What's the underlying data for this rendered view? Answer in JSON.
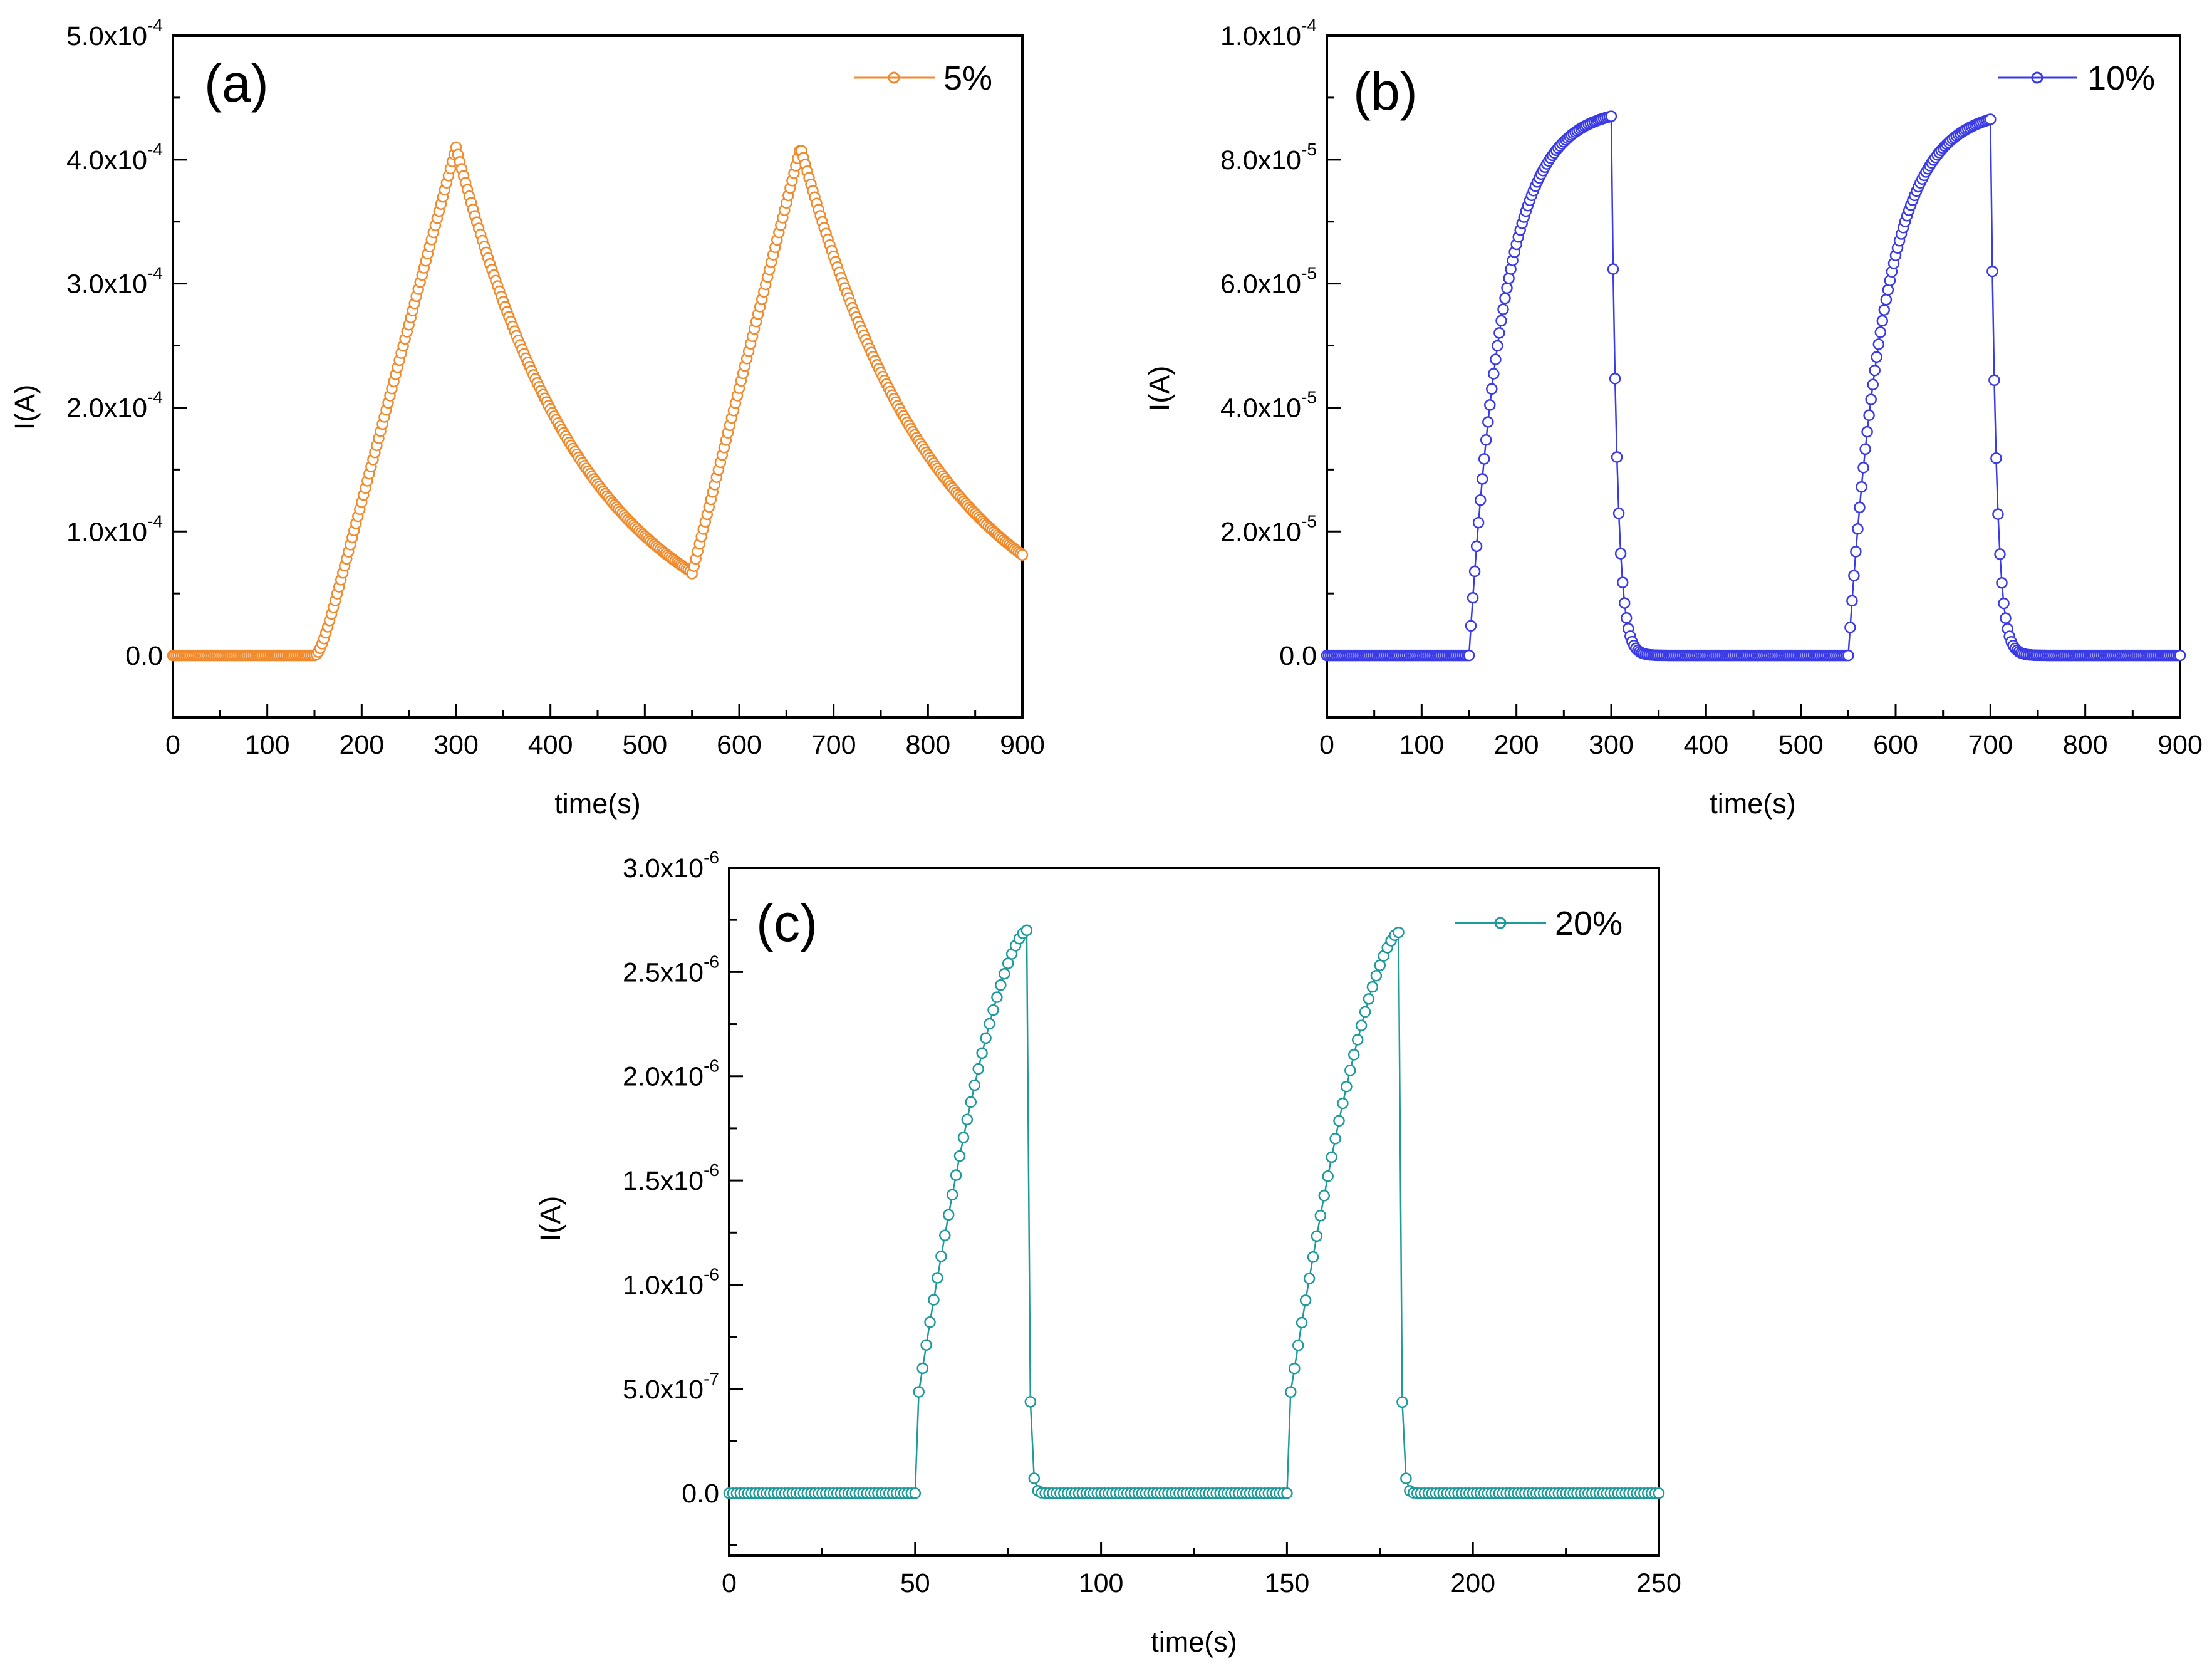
{
  "chart_data": [
    {
      "type": "scatter",
      "panel_label": "(a)",
      "xlabel": "time(s)",
      "ylabel": "I(A)",
      "xlim": [
        0,
        900
      ],
      "ylim": [
        -5e-05,
        0.0005
      ],
      "xticks": [
        0,
        100,
        200,
        300,
        400,
        500,
        600,
        700,
        800,
        900
      ],
      "xtick_labels": [
        "0",
        "100",
        "200",
        "300",
        "400",
        "500",
        "600",
        "700",
        "800",
        "900"
      ],
      "yticks": [
        {
          "value": 0,
          "mantissa": "0.0",
          "exp": ""
        },
        {
          "value": 0.0001,
          "mantissa": "1.0x10",
          "exp": "-4"
        },
        {
          "value": 0.0002,
          "mantissa": "2.0x10",
          "exp": "-4"
        },
        {
          "value": 0.0003,
          "mantissa": "3.0x10",
          "exp": "-4"
        },
        {
          "value": 0.0004,
          "mantissa": "4.0x10",
          "exp": "-4"
        },
        {
          "value": 0.0005,
          "mantissa": "5.0x10",
          "exp": "-4"
        }
      ],
      "legend_position": "top-right",
      "color": "#F08A2C",
      "marker": "open-circle",
      "series": [
        {
          "name": "5%",
          "sample_step": 2,
          "segments": [
            {
              "t0": 0,
              "t1": 150,
              "kind": "const",
              "a": 0
            },
            {
              "t0": 150,
              "t1": 300,
              "kind": "sigrise",
              "a": 0,
              "b": 0.00041,
              "tau": 0,
              "k": 22
            },
            {
              "t0": 300,
              "t1": 550,
              "kind": "decay",
              "a": 0.00041,
              "b": 0,
              "tau": 138
            },
            {
              "t0": 550,
              "t1": 665,
              "kind": "linear",
              "a": 6.6e-05,
              "b": 0.00041
            },
            {
              "t0": 665,
              "t1": 900,
              "kind": "decay",
              "a": 0.00041,
              "b": 0,
              "tau": 145
            }
          ]
        }
      ]
    },
    {
      "type": "scatter",
      "panel_label": "(b)",
      "xlabel": "time(s)",
      "ylabel": "I(A)",
      "xlim": [
        0,
        900
      ],
      "ylim": [
        -1e-05,
        0.0001
      ],
      "xticks": [
        0,
        100,
        200,
        300,
        400,
        500,
        600,
        700,
        800,
        900
      ],
      "xtick_labels": [
        "0",
        "100",
        "200",
        "300",
        "400",
        "500",
        "600",
        "700",
        "800",
        "900"
      ],
      "yticks": [
        {
          "value": 0,
          "mantissa": "0.0",
          "exp": ""
        },
        {
          "value": 2e-05,
          "mantissa": "2.0x10",
          "exp": "-5"
        },
        {
          "value": 4e-05,
          "mantissa": "4.0x10",
          "exp": "-5"
        },
        {
          "value": 6e-05,
          "mantissa": "6.0x10",
          "exp": "-5"
        },
        {
          "value": 8e-05,
          "mantissa": "8.0x10",
          "exp": "-5"
        },
        {
          "value": 0.0001,
          "mantissa": "1.0x10",
          "exp": "-4"
        }
      ],
      "legend_position": "top-right",
      "color": "#3A3AE6",
      "marker": "open-circle",
      "series": [
        {
          "name": "10%",
          "sample_step": 2,
          "segments": [
            {
              "t0": 0,
              "t1": 150,
              "kind": "const",
              "a": 0
            },
            {
              "t0": 150,
              "t1": 300,
              "kind": "rise",
              "a": 0,
              "b": 8.7e-05,
              "tau": 36
            },
            {
              "t0": 300,
              "t1": 550,
              "kind": "decay",
              "a": 8.7e-05,
              "b": 0,
              "tau": 6
            },
            {
              "t0": 550,
              "t1": 700,
              "kind": "rise",
              "a": 0,
              "b": 8.65e-05,
              "tau": 38
            },
            {
              "t0": 700,
              "t1": 900,
              "kind": "decay",
              "a": 8.65e-05,
              "b": 0,
              "tau": 6
            }
          ]
        }
      ]
    },
    {
      "type": "line",
      "panel_label": "(c)",
      "xlabel": "time(s)",
      "ylabel": "I(A)",
      "xlim": [
        0,
        250
      ],
      "ylim": [
        -3e-07,
        3e-06
      ],
      "xticks": [
        0,
        50,
        100,
        150,
        200,
        250
      ],
      "xtick_labels": [
        "0",
        "50",
        "100",
        "150",
        "200",
        "250"
      ],
      "yticks": [
        {
          "value": 0,
          "mantissa": "0.0",
          "exp": ""
        },
        {
          "value": 5e-07,
          "mantissa": "5.0x10",
          "exp": "-7"
        },
        {
          "value": 1e-06,
          "mantissa": "1.0x10",
          "exp": "-6"
        },
        {
          "value": 1.5e-06,
          "mantissa": "1.5x10",
          "exp": "-6"
        },
        {
          "value": 2e-06,
          "mantissa": "2.0x10",
          "exp": "-6"
        },
        {
          "value": 2.5e-06,
          "mantissa": "2.5x10",
          "exp": "-6"
        },
        {
          "value": 3e-06,
          "mantissa": "3.0x10",
          "exp": "-6"
        }
      ],
      "legend_position": "top-right",
      "color": "#1E9A9A",
      "marker": "open-circle",
      "series": [
        {
          "name": "20%",
          "sample_step": 1,
          "segments": [
            {
              "t0": 0,
              "t1": 50,
              "kind": "const",
              "a": 0
            },
            {
              "t0": 50,
              "t1": 80,
              "kind": "jumprise",
              "a": 3.7e-07,
              "b": 2.7e-06,
              "tau": 0
            },
            {
              "t0": 80,
              "t1": 150,
              "kind": "decay",
              "a": 2.7e-06,
              "b": 0,
              "tau": 0.55
            },
            {
              "t0": 150,
              "t1": 180,
              "kind": "jumprise",
              "a": 3.7e-07,
              "b": 2.69e-06,
              "tau": 0
            },
            {
              "t0": 180,
              "t1": 250,
              "kind": "decay",
              "a": 2.69e-06,
              "b": 0,
              "tau": 0.55
            }
          ]
        }
      ]
    }
  ]
}
